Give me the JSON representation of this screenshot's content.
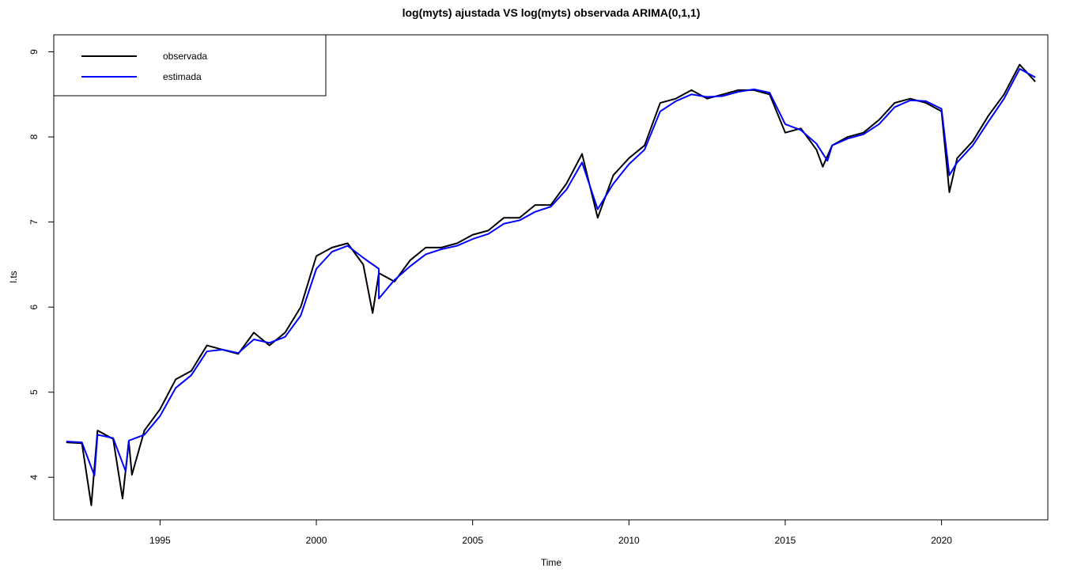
{
  "chart_data": {
    "type": "line",
    "title": "log(myts) ajustada VS log(myts) observada ARIMA(0,1,1)",
    "xlabel": "Time",
    "ylabel": "l.ts",
    "xlim": [
      1991.6,
      2023.4
    ],
    "ylim": [
      3.5,
      9.2
    ],
    "x_ticks": [
      "1995",
      "2000",
      "2005",
      "2010",
      "2015",
      "2020"
    ],
    "y_ticks": [
      "4",
      "5",
      "6",
      "7",
      "8",
      "9"
    ],
    "grid": false,
    "legend_position": "top-left",
    "x": [
      1992.0,
      1992.5,
      1993.0,
      1993.5,
      1994.0,
      1994.5,
      1995.0,
      1995.5,
      1996.0,
      1996.5,
      1997.0,
      1997.5,
      1998.0,
      1998.5,
      1999.0,
      1999.5,
      2000.0,
      2000.5,
      2001.0,
      2001.5,
      2002.0,
      2002.5,
      2003.0,
      2003.5,
      2004.0,
      2004.5,
      2005.0,
      2005.5,
      2006.0,
      2006.5,
      2007.0,
      2007.5,
      2008.0,
      2008.5,
      2009.0,
      2009.5,
      2010.0,
      2010.5,
      2011.0,
      2011.5,
      2012.0,
      2012.5,
      2013.0,
      2013.5,
      2014.0,
      2014.5,
      2015.0,
      2015.5,
      2016.0,
      2016.5,
      2017.0,
      2017.5,
      2018.0,
      2018.5,
      2019.0,
      2019.5,
      2020.0,
      2020.25,
      2020.5,
      2021.0,
      2021.5,
      2022.0,
      2022.5,
      2023.0
    ],
    "series": [
      {
        "name": "observada",
        "color": "#000000",
        "values": [
          4.41,
          4.4,
          4.55,
          4.45,
          4.42,
          4.55,
          4.8,
          5.15,
          5.25,
          5.55,
          5.5,
          5.45,
          5.7,
          5.55,
          5.7,
          6.0,
          6.6,
          6.7,
          6.75,
          6.5,
          6.4,
          6.3,
          6.55,
          6.7,
          6.7,
          6.75,
          6.85,
          6.9,
          7.05,
          7.05,
          7.2,
          7.2,
          7.45,
          7.8,
          7.05,
          7.55,
          7.75,
          7.9,
          8.4,
          8.45,
          8.55,
          8.45,
          8.5,
          8.55,
          8.55,
          8.5,
          8.05,
          8.1,
          7.85,
          7.9,
          8.0,
          8.05,
          8.2,
          8.4,
          8.45,
          8.4,
          8.3,
          7.35,
          7.75,
          7.95,
          8.25,
          8.5,
          8.85,
          8.65
        ],
        "extra_points": [
          [
            1992.8,
            3.67
          ],
          [
            1993.8,
            3.75
          ],
          [
            1994.1,
            4.03
          ],
          [
            2001.8,
            5.93
          ],
          [
            2016.2,
            7.65
          ]
        ]
      },
      {
        "name": "estimada",
        "color": "#0000ff",
        "values": [
          4.42,
          4.41,
          4.5,
          4.46,
          4.43,
          4.5,
          4.72,
          5.05,
          5.2,
          5.48,
          5.5,
          5.46,
          5.62,
          5.58,
          5.65,
          5.9,
          6.45,
          6.65,
          6.72,
          6.58,
          6.45,
          6.32,
          6.48,
          6.62,
          6.68,
          6.72,
          6.8,
          6.86,
          6.98,
          7.02,
          7.12,
          7.18,
          7.38,
          7.7,
          7.15,
          7.45,
          7.68,
          7.85,
          8.3,
          8.42,
          8.5,
          8.47,
          8.48,
          8.53,
          8.56,
          8.52,
          8.15,
          8.08,
          7.92,
          7.9,
          7.98,
          8.03,
          8.15,
          8.35,
          8.43,
          8.42,
          8.33,
          7.55,
          7.7,
          7.9,
          8.18,
          8.45,
          8.8,
          8.7
        ],
        "extra_points": [
          [
            1992.9,
            4.02
          ],
          [
            1993.9,
            4.07
          ],
          [
            2002.0,
            6.1
          ],
          [
            2016.35,
            7.72
          ]
        ]
      }
    ]
  }
}
